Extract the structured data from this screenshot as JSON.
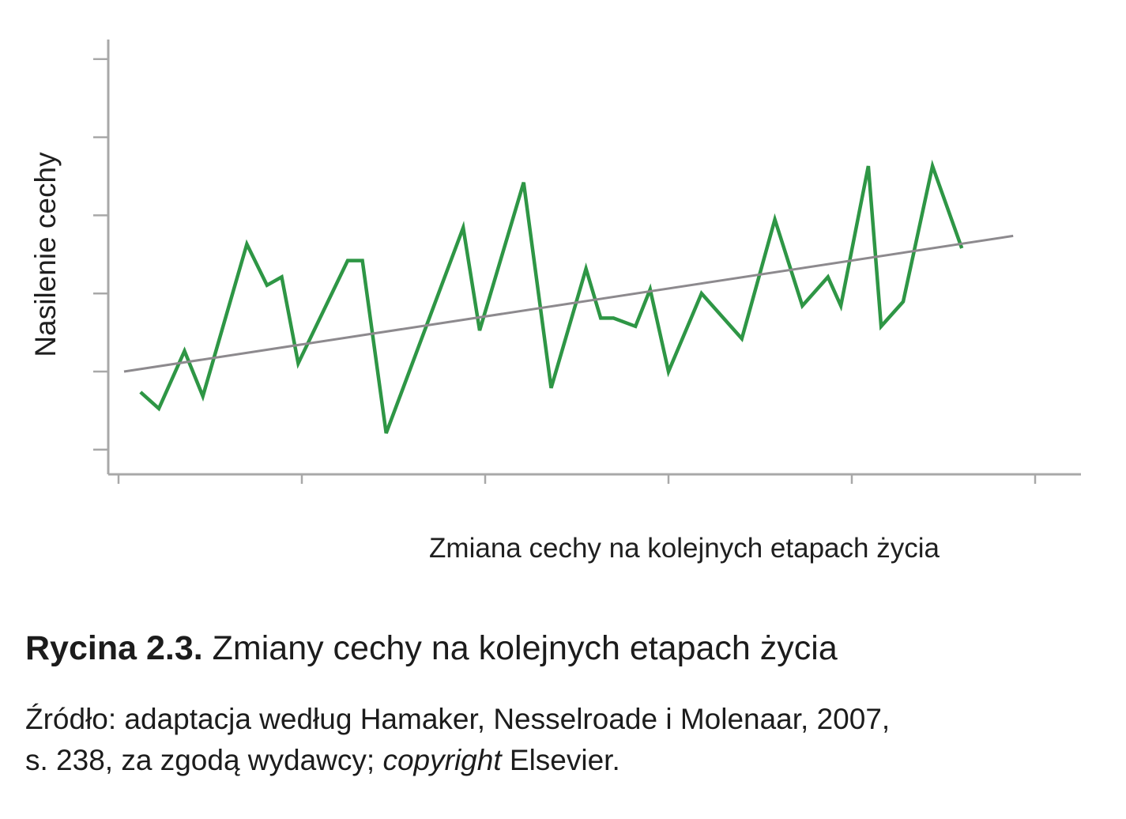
{
  "chart_data": {
    "type": "line",
    "title": "",
    "xlabel": "Zmiana cechy na kolejnych etapach życia",
    "ylabel": "Nasilenie cechy",
    "xlim": [
      0,
      50
    ],
    "ylim": [
      0,
      100
    ],
    "grid": false,
    "legend": "none",
    "tick_labels_shown": false,
    "x_ticks": [
      0,
      10,
      20,
      30,
      40,
      50
    ],
    "y_ticks": [
      6,
      25,
      44,
      63,
      82,
      101
    ],
    "series": [
      {
        "values": [
          {
            "x": 1.2,
            "y": 20
          },
          {
            "x": 2.2,
            "y": 16
          },
          {
            "x": 3.6,
            "y": 30
          },
          {
            "x": 4.6,
            "y": 19
          },
          {
            "x": 7.0,
            "y": 56
          },
          {
            "x": 8.1,
            "y": 46
          },
          {
            "x": 8.9,
            "y": 48
          },
          {
            "x": 9.8,
            "y": 27
          },
          {
            "x": 12.5,
            "y": 52
          },
          {
            "x": 13.3,
            "y": 52
          },
          {
            "x": 14.6,
            "y": 10
          },
          {
            "x": 18.8,
            "y": 60
          },
          {
            "x": 19.7,
            "y": 35
          },
          {
            "x": 22.1,
            "y": 71
          },
          {
            "x": 23.6,
            "y": 21
          },
          {
            "x": 25.5,
            "y": 50
          },
          {
            "x": 26.3,
            "y": 38
          },
          {
            "x": 27.0,
            "y": 38
          },
          {
            "x": 28.2,
            "y": 36
          },
          {
            "x": 29.0,
            "y": 45
          },
          {
            "x": 30.0,
            "y": 25
          },
          {
            "x": 31.8,
            "y": 44
          },
          {
            "x": 34.0,
            "y": 33
          },
          {
            "x": 35.8,
            "y": 62
          },
          {
            "x": 37.3,
            "y": 41
          },
          {
            "x": 38.7,
            "y": 48
          },
          {
            "x": 39.4,
            "y": 41
          },
          {
            "x": 40.9,
            "y": 75
          },
          {
            "x": 41.6,
            "y": 36
          },
          {
            "x": 42.8,
            "y": 42
          },
          {
            "x": 44.4,
            "y": 75
          },
          {
            "x": 46.0,
            "y": 55
          }
        ],
        "color": "#2e9645"
      },
      {
        "kind": "trend",
        "values": [
          {
            "x": 0.3,
            "y": 25
          },
          {
            "x": 48.8,
            "y": 58
          }
        ],
        "color": "#8d8a8e"
      }
    ]
  },
  "caption": {
    "label": "Rycina 2.3.",
    "title": "Zmiany cechy na kolejnych etapach życia",
    "source_line1": "Źródło: adaptacja według Hamaker, Nesselroade i Molenaar, 2007,",
    "source_line2_start": "s. 238, za zgodą wydawcy; ",
    "source_italic": "copyright",
    "source_line2_end": " Elsevier."
  }
}
